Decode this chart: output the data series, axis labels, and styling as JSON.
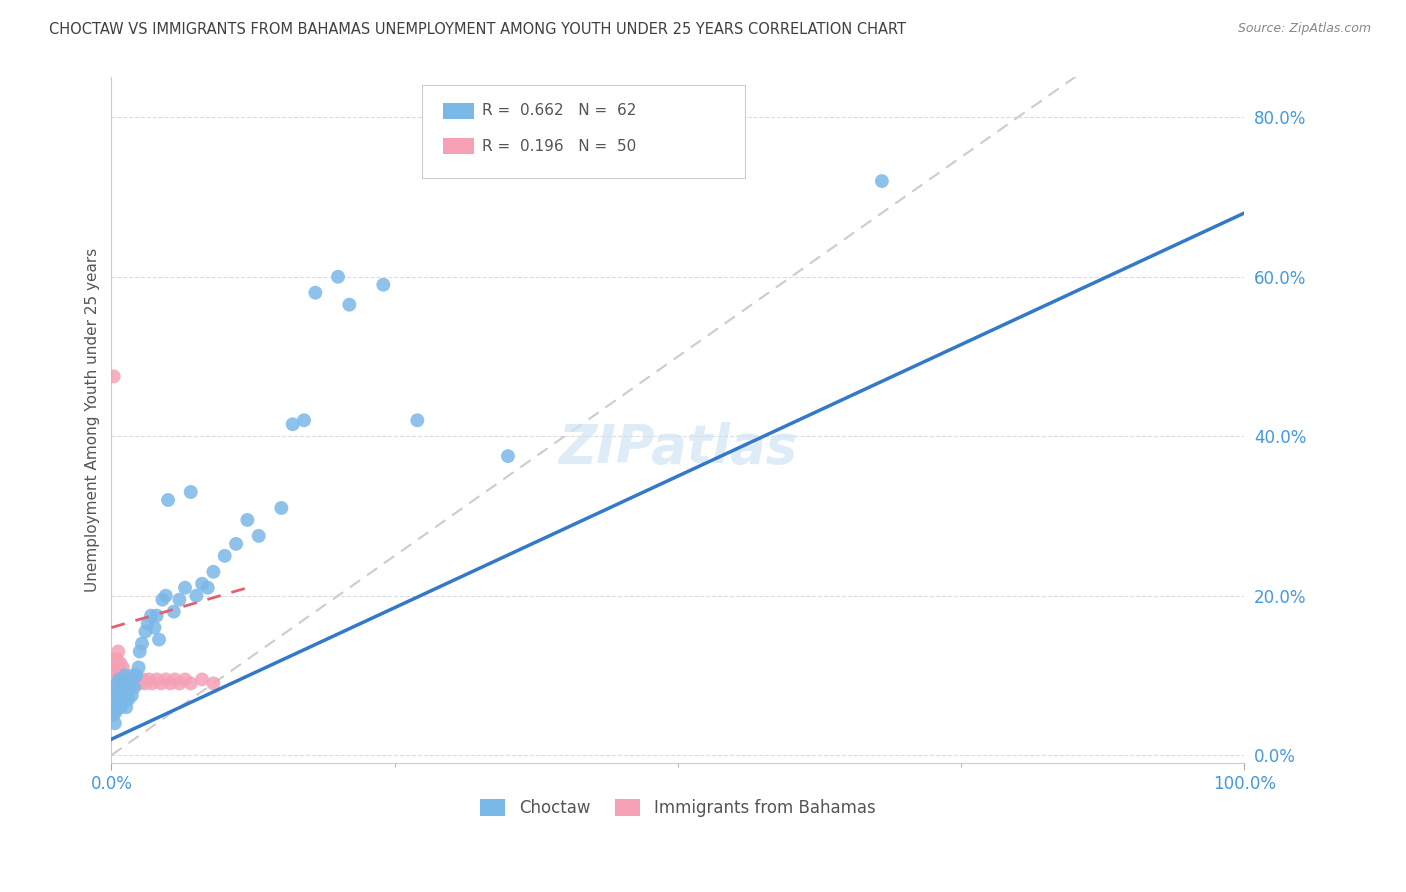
{
  "title": "CHOCTAW VS IMMIGRANTS FROM BAHAMAS UNEMPLOYMENT AMONG YOUTH UNDER 25 YEARS CORRELATION CHART",
  "source": "Source: ZipAtlas.com",
  "ylabel": "Unemployment Among Youth under 25 years",
  "choctaw_R": 0.662,
  "choctaw_N": 62,
  "bahamas_R": 0.196,
  "bahamas_N": 50,
  "choctaw_color": "#7ab8e8",
  "bahamas_color": "#f5a0b5",
  "choctaw_line_color": "#3478c8",
  "bahamas_line_color": "#e06070",
  "ref_line_color": "#cccccc",
  "axis_label_color": "#4499dd",
  "title_color": "#404040",
  "background_color": "#ffffff",
  "xlim": [
    0,
    1.0
  ],
  "ylim": [
    0,
    0.85
  ],
  "choctaw_line_x0": 0.0,
  "choctaw_line_y0": 0.02,
  "choctaw_line_x1": 1.0,
  "choctaw_line_y1": 0.68,
  "bahamas_line_x0": 0.0,
  "bahamas_line_y0": 0.16,
  "bahamas_line_x1": 0.12,
  "bahamas_line_y1": 0.21,
  "choctaw_x": [
    0.002,
    0.003,
    0.003,
    0.004,
    0.004,
    0.005,
    0.005,
    0.006,
    0.007,
    0.007,
    0.008,
    0.008,
    0.009,
    0.01,
    0.01,
    0.011,
    0.012,
    0.012,
    0.013,
    0.014,
    0.015,
    0.015,
    0.016,
    0.017,
    0.018,
    0.019,
    0.02,
    0.022,
    0.024,
    0.025,
    0.027,
    0.03,
    0.032,
    0.035,
    0.038,
    0.04,
    0.042,
    0.045,
    0.048,
    0.05,
    0.055,
    0.06,
    0.065,
    0.07,
    0.075,
    0.08,
    0.085,
    0.09,
    0.1,
    0.11,
    0.12,
    0.13,
    0.15,
    0.16,
    0.17,
    0.18,
    0.2,
    0.21,
    0.24,
    0.27,
    0.35,
    0.68
  ],
  "choctaw_y": [
    0.05,
    0.04,
    0.065,
    0.055,
    0.08,
    0.06,
    0.09,
    0.075,
    0.07,
    0.095,
    0.06,
    0.085,
    0.075,
    0.065,
    0.09,
    0.08,
    0.07,
    0.1,
    0.06,
    0.08,
    0.09,
    0.07,
    0.085,
    0.095,
    0.075,
    0.1,
    0.085,
    0.1,
    0.11,
    0.13,
    0.14,
    0.155,
    0.165,
    0.175,
    0.16,
    0.175,
    0.145,
    0.195,
    0.2,
    0.32,
    0.18,
    0.195,
    0.21,
    0.33,
    0.2,
    0.215,
    0.21,
    0.23,
    0.25,
    0.265,
    0.295,
    0.275,
    0.31,
    0.415,
    0.42,
    0.58,
    0.6,
    0.565,
    0.59,
    0.42,
    0.375,
    0.72
  ],
  "bahamas_x": [
    0.001,
    0.001,
    0.002,
    0.002,
    0.002,
    0.003,
    0.003,
    0.003,
    0.004,
    0.004,
    0.004,
    0.005,
    0.005,
    0.005,
    0.006,
    0.006,
    0.006,
    0.007,
    0.007,
    0.008,
    0.008,
    0.009,
    0.009,
    0.01,
    0.01,
    0.011,
    0.012,
    0.013,
    0.014,
    0.015,
    0.016,
    0.018,
    0.02,
    0.022,
    0.025,
    0.028,
    0.03,
    0.033,
    0.036,
    0.04,
    0.044,
    0.048,
    0.052,
    0.056,
    0.06,
    0.065,
    0.07,
    0.08,
    0.09,
    0.002
  ],
  "bahamas_y": [
    0.09,
    0.07,
    0.1,
    0.08,
    0.12,
    0.075,
    0.095,
    0.11,
    0.085,
    0.095,
    0.115,
    0.08,
    0.1,
    0.12,
    0.09,
    0.11,
    0.13,
    0.085,
    0.1,
    0.09,
    0.115,
    0.08,
    0.1,
    0.09,
    0.11,
    0.095,
    0.09,
    0.095,
    0.09,
    0.095,
    0.09,
    0.095,
    0.09,
    0.095,
    0.09,
    0.095,
    0.09,
    0.095,
    0.09,
    0.095,
    0.09,
    0.095,
    0.09,
    0.095,
    0.09,
    0.095,
    0.09,
    0.095,
    0.09,
    0.475
  ],
  "ytick_values": [
    0.0,
    0.2,
    0.4,
    0.6,
    0.8
  ],
  "xtick_values": [
    0.0,
    1.0
  ],
  "xtick_labels": [
    "0.0%",
    "100.0%"
  ]
}
